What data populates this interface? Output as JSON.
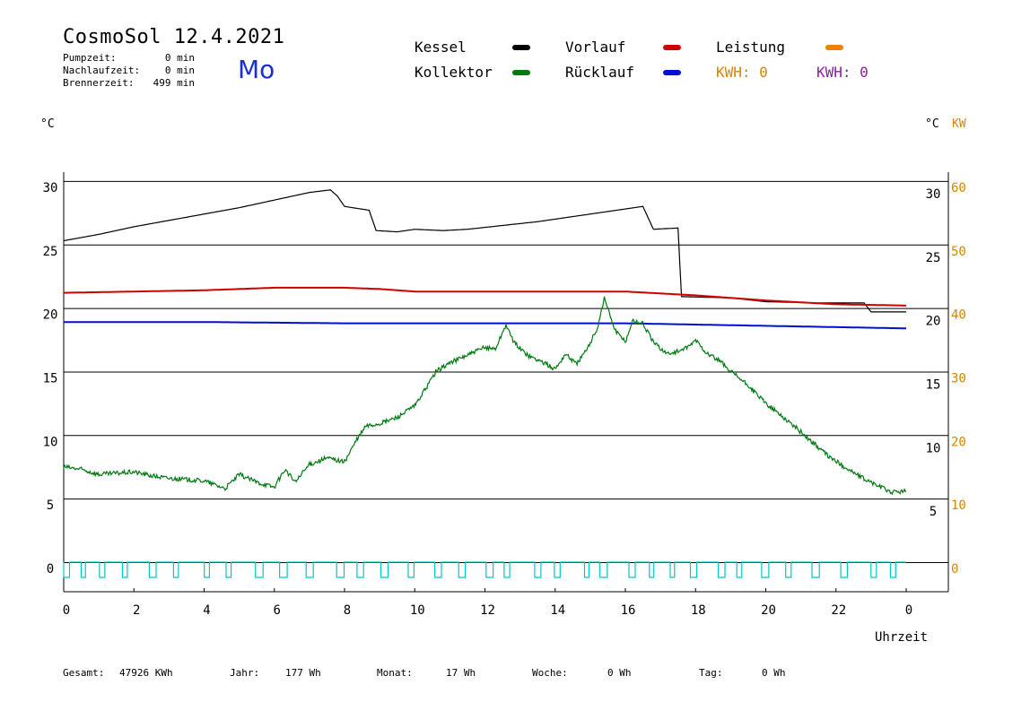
{
  "header": {
    "title": "CosmoSol 12.4.2021",
    "day": "Mo",
    "stats": [
      {
        "label": "Pumpzeit:",
        "value": "0 min"
      },
      {
        "label": "Nachlaufzeit:",
        "value": "0 min"
      },
      {
        "label": "Brennerzeit:",
        "value": "499 min"
      }
    ]
  },
  "legend": {
    "kessel": "Kessel",
    "kollektor": "Kollektor",
    "vorlauf": "Vorlauf",
    "ruecklauf": "Rücklauf",
    "leistung": "Leistung",
    "kwh1": "KWH: 0",
    "kwh2": "KWH: 0"
  },
  "axis_units": {
    "left": "°C",
    "right_c": "°C",
    "right_kw": "KW"
  },
  "footer": {
    "gesamt_label": "Gesamt:",
    "gesamt_value": "47926 KWh",
    "jahr_label": "Jahr:",
    "jahr_value": "177 Wh",
    "monat_label": "Monat:",
    "monat_value": "17 Wh",
    "woche_label": "Woche:",
    "woche_value": "0 Wh",
    "tag_label": "Tag:",
    "tag_value": "0 Wh"
  },
  "colors": {
    "kessel": "#000000",
    "kollektor": "#007a10",
    "vorlauf": "#d00000",
    "ruecklauf": "#0010d0",
    "leistung": "#f08000",
    "kwh1": "#d88400",
    "kwh2": "#8a1fa0",
    "pump": "#00c8c8"
  },
  "chart_data": {
    "type": "line",
    "title": "CosmoSol 12.4.2021",
    "xlabel": "Uhrzeit",
    "ylabel": "°C",
    "xlim": [
      0,
      24
    ],
    "ylim": [
      0,
      30
    ],
    "x_ticks": [
      "0",
      "2",
      "4",
      "6",
      "8",
      "10",
      "12",
      "14",
      "16",
      "18",
      "20",
      "22",
      "0"
    ],
    "y_ticks_left": [
      "0",
      "5",
      "10",
      "15",
      "20",
      "25",
      "30"
    ],
    "y_ticks_right_c": [
      "5",
      "10",
      "15",
      "20",
      "25",
      "30"
    ],
    "y_ticks_right_kw": [
      "0",
      "10",
      "20",
      "30",
      "40",
      "50",
      "60"
    ],
    "grid": true,
    "series": [
      {
        "name": "Kessel",
        "color": "#000000",
        "points": [
          [
            0,
            25.3
          ],
          [
            1,
            25.8
          ],
          [
            2,
            26.4
          ],
          [
            3,
            26.9
          ],
          [
            4,
            27.4
          ],
          [
            5,
            27.9
          ],
          [
            6,
            28.5
          ],
          [
            7,
            29.1
          ],
          [
            7.6,
            29.3
          ],
          [
            7.8,
            28.8
          ],
          [
            8.0,
            28.0
          ],
          [
            8.7,
            27.7
          ],
          [
            8.9,
            26.1
          ],
          [
            9.5,
            26.0
          ],
          [
            10,
            26.2
          ],
          [
            10.8,
            26.1
          ],
          [
            11.5,
            26.2
          ],
          [
            12.5,
            26.5
          ],
          [
            13.5,
            26.8
          ],
          [
            14.5,
            27.2
          ],
          [
            15.5,
            27.6
          ],
          [
            16.5,
            28.0
          ],
          [
            16.8,
            26.2
          ],
          [
            17.5,
            26.3
          ],
          [
            17.6,
            20.9
          ],
          [
            19,
            20.8
          ],
          [
            20,
            20.5
          ],
          [
            21.5,
            20.4
          ],
          [
            22.8,
            20.4
          ],
          [
            23,
            19.7
          ],
          [
            24,
            19.7
          ]
        ]
      },
      {
        "name": "Vorlauf",
        "color": "#d00000",
        "points": [
          [
            0,
            21.2
          ],
          [
            2,
            21.3
          ],
          [
            4,
            21.4
          ],
          [
            6,
            21.6
          ],
          [
            8,
            21.6
          ],
          [
            9,
            21.5
          ],
          [
            10,
            21.3
          ],
          [
            12,
            21.3
          ],
          [
            14,
            21.3
          ],
          [
            16,
            21.3
          ],
          [
            18,
            21.0
          ],
          [
            20,
            20.6
          ],
          [
            22,
            20.3
          ],
          [
            24,
            20.2
          ]
        ]
      },
      {
        "name": "Rücklauf",
        "color": "#0010d0",
        "points": [
          [
            0,
            18.9
          ],
          [
            4,
            18.9
          ],
          [
            8,
            18.8
          ],
          [
            12,
            18.8
          ],
          [
            16,
            18.8
          ],
          [
            18,
            18.7
          ],
          [
            20,
            18.6
          ],
          [
            22,
            18.5
          ],
          [
            24,
            18.4
          ]
        ]
      },
      {
        "name": "Kollektor",
        "color": "#007a10",
        "points": [
          [
            0,
            7.5
          ],
          [
            0.5,
            7.3
          ],
          [
            1,
            6.9
          ],
          [
            1.5,
            7.0
          ],
          [
            2,
            7.1
          ],
          [
            2.5,
            6.8
          ],
          [
            3,
            6.6
          ],
          [
            3.5,
            6.5
          ],
          [
            4,
            6.4
          ],
          [
            4.6,
            5.8
          ],
          [
            5,
            6.9
          ],
          [
            5.5,
            6.3
          ],
          [
            6,
            5.9
          ],
          [
            6.3,
            7.3
          ],
          [
            6.6,
            6.3
          ],
          [
            7,
            7.7
          ],
          [
            7.5,
            8.2
          ],
          [
            8,
            7.9
          ],
          [
            8.3,
            9.4
          ],
          [
            8.6,
            10.7
          ],
          [
            9,
            10.9
          ],
          [
            9.5,
            11.4
          ],
          [
            10,
            12.3
          ],
          [
            10.3,
            13.6
          ],
          [
            10.6,
            15.0
          ],
          [
            11,
            15.7
          ],
          [
            11.5,
            16.3
          ],
          [
            12,
            16.9
          ],
          [
            12.3,
            16.8
          ],
          [
            12.6,
            18.7
          ],
          [
            12.8,
            17.4
          ],
          [
            13.2,
            16.3
          ],
          [
            13.6,
            15.8
          ],
          [
            14,
            15.2
          ],
          [
            14.3,
            16.4
          ],
          [
            14.6,
            15.6
          ],
          [
            14.9,
            16.7
          ],
          [
            15.2,
            18.4
          ],
          [
            15.4,
            20.8
          ],
          [
            15.7,
            18.3
          ],
          [
            16,
            17.3
          ],
          [
            16.2,
            19.0
          ],
          [
            16.5,
            18.8
          ],
          [
            16.8,
            17.3
          ],
          [
            17.2,
            16.4
          ],
          [
            17.5,
            16.6
          ],
          [
            17.8,
            16.9
          ],
          [
            18,
            17.5
          ],
          [
            18.3,
            16.5
          ],
          [
            18.7,
            15.8
          ],
          [
            19,
            15.0
          ],
          [
            19.5,
            13.9
          ],
          [
            20,
            12.5
          ],
          [
            20.5,
            11.4
          ],
          [
            20.9,
            10.5
          ],
          [
            21.3,
            9.5
          ],
          [
            21.8,
            8.3
          ],
          [
            22.3,
            7.4
          ],
          [
            22.7,
            6.7
          ],
          [
            23.2,
            6.0
          ],
          [
            23.6,
            5.5
          ],
          [
            24,
            5.6
          ]
        ]
      }
    ],
    "pump_series": {
      "name": "Pumpe",
      "color": "#00c8c8",
      "level_on": 0.0,
      "level_off": -1.2
    }
  }
}
